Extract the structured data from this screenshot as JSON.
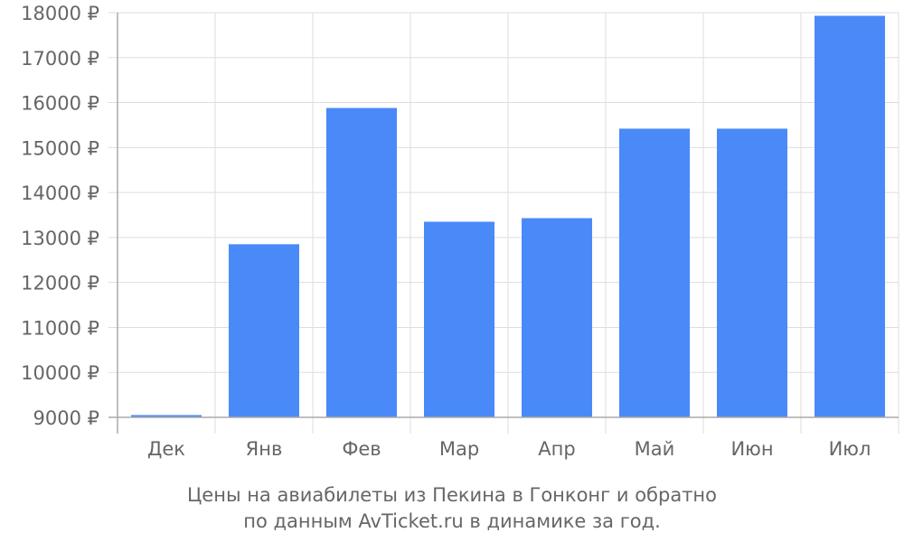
{
  "chart_data": {
    "type": "bar",
    "categories": [
      "Дек",
      "Янв",
      "Фев",
      "Мар",
      "Апр",
      "Май",
      "Июн",
      "Июл"
    ],
    "values": [
      9050,
      12850,
      15880,
      13350,
      13430,
      15420,
      15420,
      17930
    ],
    "ylim": [
      9000,
      18000
    ],
    "yticks": [
      {
        "value": 9000,
        "label": "9000 ₽"
      },
      {
        "value": 10000,
        "label": "10000 ₽"
      },
      {
        "value": 11000,
        "label": "11000 ₽"
      },
      {
        "value": 12000,
        "label": "12000 ₽"
      },
      {
        "value": 13000,
        "label": "13000 ₽"
      },
      {
        "value": 14000,
        "label": "14000 ₽"
      },
      {
        "value": 15000,
        "label": "15000 ₽"
      },
      {
        "value": 16000,
        "label": "16000 ₽"
      },
      {
        "value": 17000,
        "label": "17000 ₽"
      },
      {
        "value": 18000,
        "label": "18000 ₽"
      }
    ],
    "grid": true,
    "bar_color": "#4a89f8",
    "caption": [
      "Цены на авиабилеты из Пекина в Гонконг и обратно",
      "по данным AvTicket.ru в динамике за год."
    ]
  }
}
